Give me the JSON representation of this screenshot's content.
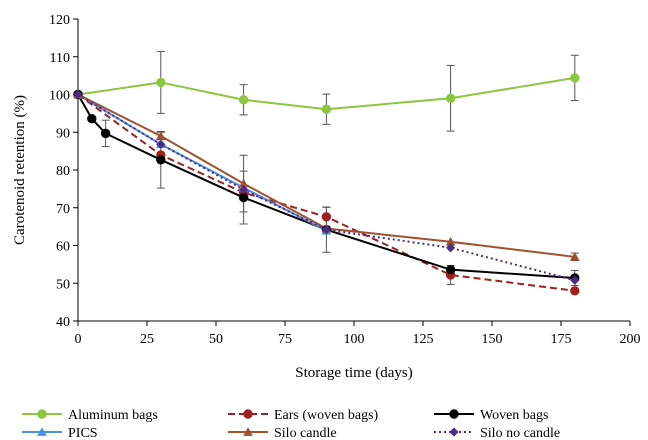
{
  "chart_data": {
    "type": "line",
    "title": "",
    "xlabel": "Storage time (days)",
    "ylabel": "Carotenoid retention (%)",
    "xlim": [
      0,
      200
    ],
    "ylim": [
      40,
      120
    ],
    "xticks": [
      0,
      25,
      50,
      75,
      100,
      125,
      150,
      175,
      200
    ],
    "yticks": [
      40,
      50,
      60,
      70,
      80,
      90,
      100,
      110,
      120
    ],
    "grid": false,
    "legend_position": "bottom",
    "series": [
      {
        "name": "Aluminum bags",
        "color": "#8dc63f",
        "dash": "solid",
        "marker": "circle",
        "points": [
          {
            "x": 0,
            "y": 100,
            "err": 0
          },
          {
            "x": 30,
            "y": 103.2,
            "err": 8.2
          },
          {
            "x": 60,
            "y": 98.6,
            "err": 4.0
          },
          {
            "x": 90,
            "y": 96.1,
            "err": 4.0
          },
          {
            "x": 135,
            "y": 99.0,
            "err": 8.7
          },
          {
            "x": 180,
            "y": 104.4,
            "err": 6.0
          }
        ]
      },
      {
        "name": "Ears (woven bags)",
        "color": "#a31f1f",
        "dash": "dashed",
        "marker": "circle",
        "points": [
          {
            "x": 0,
            "y": 100,
            "err": 0
          },
          {
            "x": 30,
            "y": 84.0,
            "err": 0
          },
          {
            "x": 60,
            "y": 74.0,
            "err": 0
          },
          {
            "x": 90,
            "y": 67.6,
            "err": 2.5
          },
          {
            "x": 135,
            "y": 52.2,
            "err": 2.5
          },
          {
            "x": 180,
            "y": 48.0,
            "err": 0
          }
        ]
      },
      {
        "name": "Woven bags",
        "color": "#000000",
        "dash": "solid",
        "marker": "circle",
        "points": [
          {
            "x": 0,
            "y": 100,
            "err": 0
          },
          {
            "x": 5,
            "y": 93.6,
            "err": 0
          },
          {
            "x": 10,
            "y": 89.7,
            "err": 3.5
          },
          {
            "x": 30,
            "y": 82.7,
            "err": 7.5
          },
          {
            "x": 60,
            "y": 72.7,
            "err": 7.0
          },
          {
            "x": 90,
            "y": 64.2,
            "err": 6.0
          },
          {
            "x": 135,
            "y": 53.6,
            "err": 0
          },
          {
            "x": 180,
            "y": 51.4,
            "err": 2.0
          }
        ]
      },
      {
        "name": "PICS",
        "color": "#4a90e2",
        "dash": "solid",
        "marker": "triangle",
        "points": [
          {
            "x": 0,
            "y": 100,
            "err": 0
          },
          {
            "x": 30,
            "y": 86.8,
            "err": 0
          },
          {
            "x": 60,
            "y": 75.3,
            "err": 0
          },
          {
            "x": 90,
            "y": 63.9,
            "err": 0
          }
        ]
      },
      {
        "name": "Silo candle",
        "color": "#a0522d",
        "dash": "solid",
        "marker": "triangle",
        "points": [
          {
            "x": 0,
            "y": 100,
            "err": 0
          },
          {
            "x": 30,
            "y": 89.0,
            "err": 1.0
          },
          {
            "x": 60,
            "y": 76.4,
            "err": 7.5
          },
          {
            "x": 90,
            "y": 64.5,
            "err": 0
          },
          {
            "x": 135,
            "y": 61.0,
            "err": 0
          },
          {
            "x": 180,
            "y": 57.0,
            "err": 1.0
          }
        ]
      },
      {
        "name": "Silo no candle",
        "color": "#4b2c8a",
        "dash": "dotted",
        "marker": "diamond",
        "points": [
          {
            "x": 0,
            "y": 100,
            "err": 0
          },
          {
            "x": 30,
            "y": 86.8,
            "err": 0
          },
          {
            "x": 60,
            "y": 74.8,
            "err": 0
          },
          {
            "x": 90,
            "y": 64.2,
            "err": 0
          },
          {
            "x": 135,
            "y": 59.4,
            "err": 0
          },
          {
            "x": 180,
            "y": 50.8,
            "err": 0
          }
        ]
      }
    ]
  }
}
